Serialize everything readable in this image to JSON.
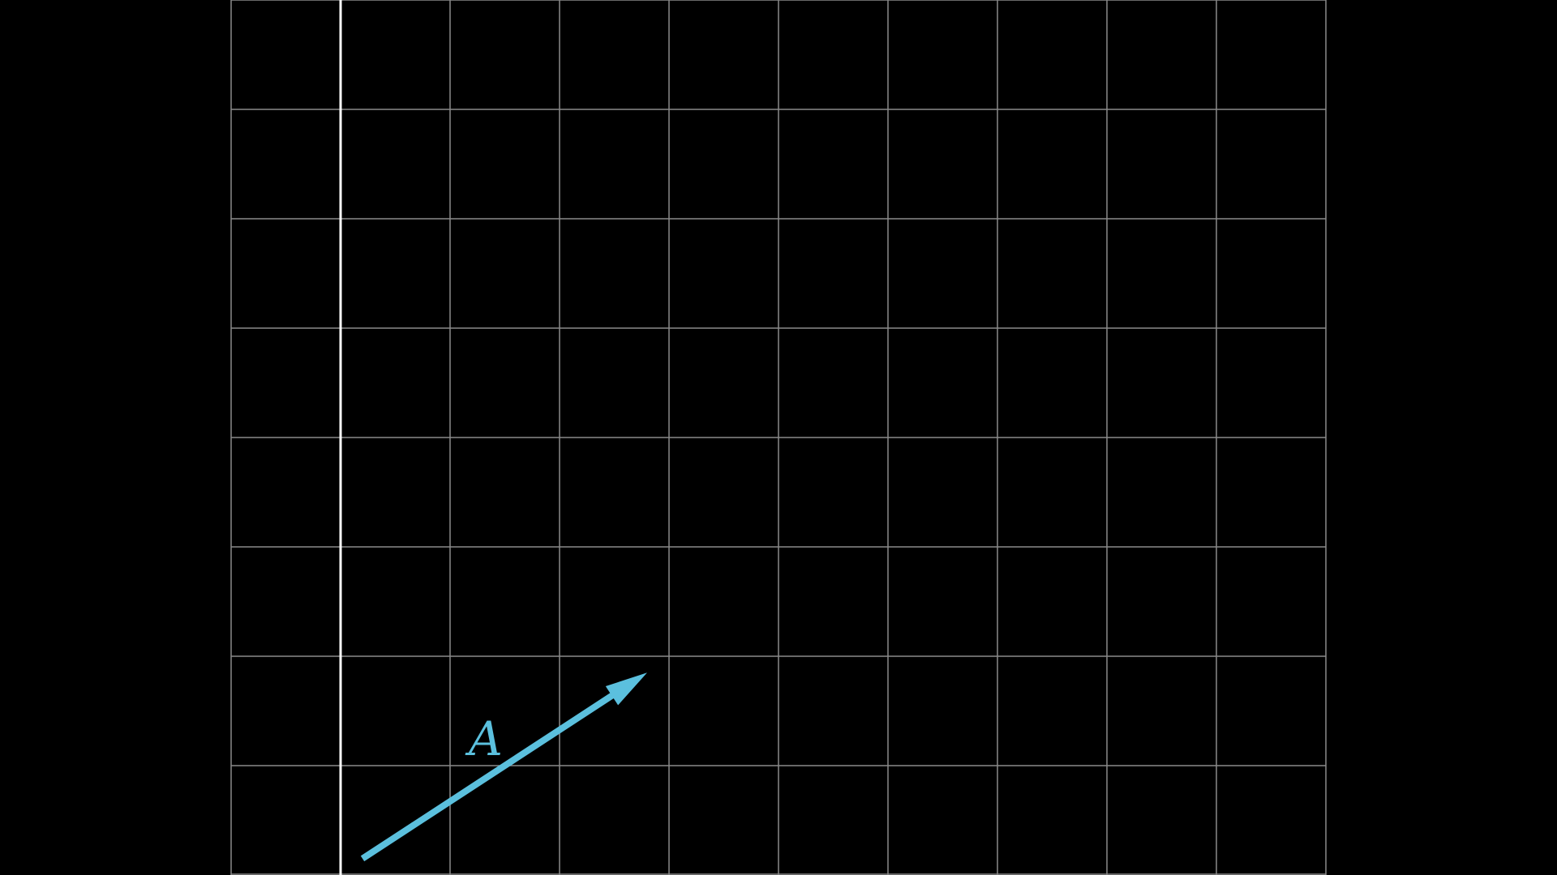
{
  "diagram": {
    "background_color": "#000000",
    "grid": {
      "columns": 10,
      "rows": 8,
      "line_color": "#8a8a8a",
      "axis_color": "#ffffff",
      "axis_column_index": 1
    },
    "vector": {
      "label": "A",
      "color": "#5bc0de",
      "tail": [
        0.2,
        0.15
      ],
      "head": [
        2.8,
        1.85
      ]
    }
  }
}
